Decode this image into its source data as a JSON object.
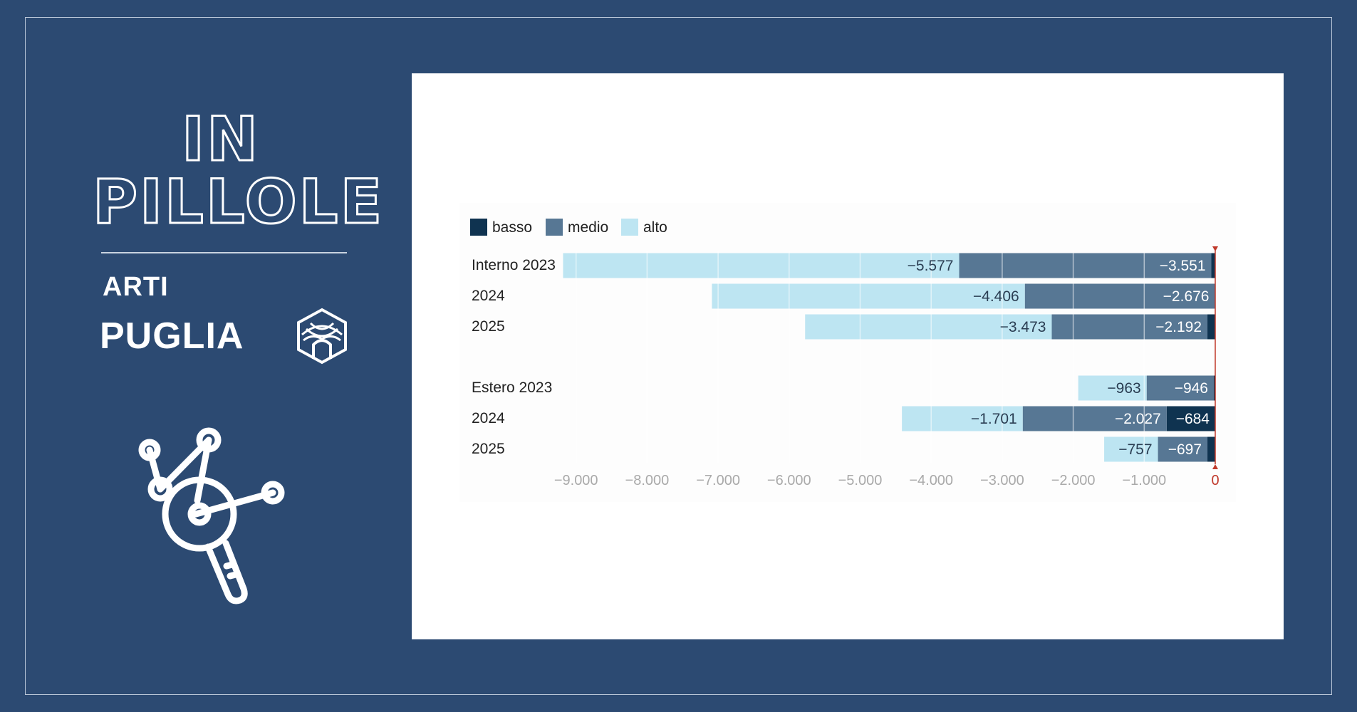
{
  "sidebar": {
    "title_line_1": "IN",
    "title_line_2": "PILLOLE",
    "subtitle_1": "ARTI",
    "subtitle_2": "PUGLIA"
  },
  "colors": {
    "background": "#2c4a72",
    "basso": "#0f3350",
    "medio": "#577794",
    "alto": "#bde5f2",
    "zero_line": "#c0392b"
  },
  "icons": [
    "arti-emblem-icon",
    "molecule-magnifier-icon"
  ],
  "chart_data": {
    "type": "bar",
    "orientation": "horizontal",
    "stacked": true,
    "legend": [
      "basso",
      "medio",
      "alto"
    ],
    "legend_position": "top-left",
    "categories": [
      "Interno 2023",
      "2024",
      "2025",
      "Estero 2023",
      "2024",
      "2025"
    ],
    "series": [
      {
        "name": "basso",
        "values": [
          -55,
          -5,
          -110,
          -20,
          -684,
          -110
        ]
      },
      {
        "name": "medio",
        "values": [
          -3551,
          -2676,
          -2192,
          -946,
          -2027,
          -697
        ]
      },
      {
        "name": "alto",
        "values": [
          -5577,
          -4406,
          -3473,
          -963,
          -1701,
          -757
        ]
      }
    ],
    "data_labels": {
      "basso": [
        "",
        "",
        "",
        "",
        "−684",
        ""
      ],
      "medio": [
        "−3.551",
        "−2.676",
        "−2.192",
        "−946",
        "−2.027",
        "−697"
      ],
      "alto": [
        "−5.577",
        "−4.406",
        "−3.473",
        "−963",
        "−1.701",
        "−757"
      ]
    },
    "x_ticks": [
      -9000,
      -8000,
      -7000,
      -6000,
      -5000,
      -4000,
      -3000,
      -2000,
      -1000,
      0
    ],
    "x_tick_labels": [
      "−9.000",
      "−8.000",
      "−7.000",
      "−6.000",
      "−5.000",
      "−4.000",
      "−3.000",
      "−2.000",
      "−1.000",
      "0"
    ],
    "xlim": [
      -9000,
      0
    ],
    "grid": true
  }
}
